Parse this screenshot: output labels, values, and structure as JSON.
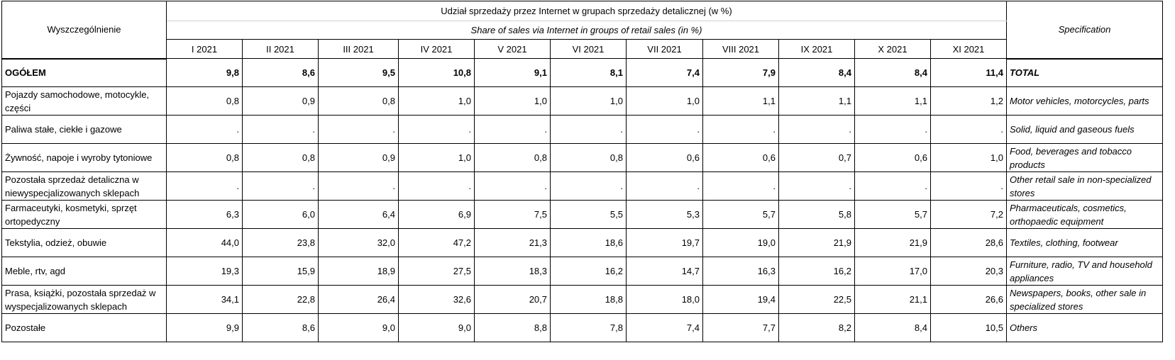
{
  "header": {
    "row_label_pl": "Wyszczególnienie",
    "row_label_en": "Specification",
    "title_pl": "Udział sprzedaży przez Internet w grupach sprzedaży detalicznej  (w %)",
    "title_en": "Share of sales via Internet in groups of retail sales (in %)",
    "months": [
      "I 2021",
      "II 2021",
      "III 2021",
      "IV 2021",
      "V 2021",
      "VI 2021",
      "VII 2021",
      "VIII 2021",
      "IX 2021",
      "X 2021",
      "XI 2021"
    ]
  },
  "rows": [
    {
      "pl": "OGÓŁEM",
      "en": "TOTAL",
      "bold": true,
      "values": [
        "9,8",
        "8,6",
        "9,5",
        "10,8",
        "9,1",
        "8,1",
        "7,4",
        "7,9",
        "8,4",
        "8,4",
        "11,4"
      ]
    },
    {
      "pl": "Pojazdy samochodowe, motocykle, części",
      "en": "Motor vehicles, motorcycles, parts",
      "values": [
        "0,8",
        "0,9",
        "0,8",
        "1,0",
        "1,0",
        "1,0",
        "1,0",
        "1,1",
        "1,1",
        "1,1",
        "1,2"
      ]
    },
    {
      "pl": "Paliwa stałe, ciekłe i gazowe",
      "en": "Solid, liquid and gaseous fuels",
      "values": [
        ".",
        ".",
        ".",
        ".",
        ".",
        ".",
        ".",
        ".",
        ".",
        ".",
        "."
      ]
    },
    {
      "pl": "Żywność, napoje i wyroby tytoniowe",
      "en": "Food, beverages and tobacco products",
      "values": [
        "0,8",
        "0,8",
        "0,9",
        "1,0",
        "0,8",
        "0,8",
        "0,6",
        "0,6",
        "0,7",
        "0,6",
        "1,0"
      ]
    },
    {
      "pl": "Pozostała sprzedaż detaliczna w niewyspecjalizowanych sklepach",
      "en": "Other retail sale in non-specialized stores",
      "values": [
        ".",
        ".",
        ".",
        ".",
        ".",
        ".",
        ".",
        ".",
        ".",
        ".",
        "."
      ]
    },
    {
      "pl": "Farmaceutyki, kosmetyki, sprzęt ortopedyczny",
      "en": "Pharmaceuticals, cosmetics, orthopaedic equipment",
      "values": [
        "6,3",
        "6,0",
        "6,4",
        "6,9",
        "7,5",
        "5,5",
        "5,3",
        "5,7",
        "5,8",
        "5,7",
        "7,2"
      ]
    },
    {
      "pl": "Tekstylia, odzież, obuwie",
      "en": "Textiles, clothing, footwear",
      "values": [
        "44,0",
        "23,8",
        "32,0",
        "47,2",
        "21,3",
        "18,6",
        "19,7",
        "19,0",
        "21,9",
        "21,9",
        "28,6"
      ]
    },
    {
      "pl": "Meble, rtv, agd",
      "en": "Furniture, radio, TV and household appliances",
      "values": [
        "19,3",
        "15,9",
        "18,9",
        "27,5",
        "18,3",
        "16,2",
        "14,7",
        "16,3",
        "16,2",
        "17,0",
        "20,3"
      ]
    },
    {
      "pl": "Prasa, książki, pozostała sprzedaż w wyspecjalizowanych sklepach",
      "en": "Newspapers, books, other sale in specialized stores",
      "values": [
        "34,1",
        "22,8",
        "26,4",
        "32,6",
        "20,7",
        "18,8",
        "18,0",
        "19,4",
        "22,5",
        "21,1",
        "26,6"
      ]
    },
    {
      "pl": "Pozostałe",
      "en": "Others",
      "values": [
        "9,9",
        "8,6",
        "9,0",
        "9,0",
        "8,8",
        "7,8",
        "7,4",
        "7,7",
        "8,2",
        "8,4",
        "10,5"
      ]
    }
  ]
}
